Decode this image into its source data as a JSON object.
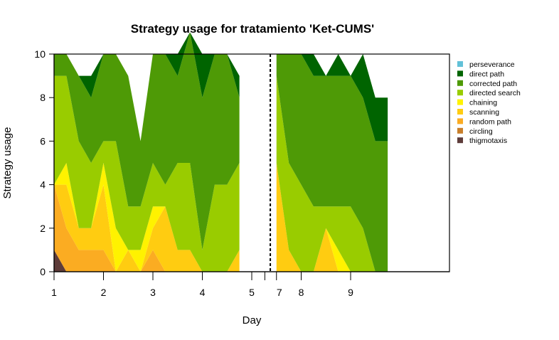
{
  "chart_data": {
    "type": "area",
    "title": "Strategy usage for tratamiento 'Ket-CUMS'",
    "xlabel": "Day",
    "ylabel": "Strategy usage",
    "xlim": [
      1,
      9
    ],
    "ylim": [
      0,
      10
    ],
    "x_ticks": [
      "1",
      "2",
      "3",
      "4",
      "5",
      "7",
      "8",
      "9"
    ],
    "y_ticks": [
      "0",
      "2",
      "4",
      "6",
      "8",
      "10"
    ],
    "legend_position": "right",
    "x_positions": [
      1.0,
      1.25,
      1.5,
      1.75,
      2.0,
      2.25,
      2.5,
      2.75,
      3.0,
      3.25,
      3.5,
      3.75,
      4.0,
      4.25,
      4.5,
      4.75,
      5.5,
      5.75,
      6.0,
      6.25,
      6.5,
      6.75,
      7.0,
      7.25,
      7.5,
      7.75
    ],
    "segments": [
      [
        0,
        15
      ],
      [
        16,
        25
      ]
    ],
    "break_line_x": 5.375,
    "series": [
      {
        "name": "thigmotaxis",
        "color": "#5e3c3a",
        "values": [
          1,
          0,
          0,
          0,
          0,
          0,
          0,
          0,
          0,
          0,
          0,
          0,
          0,
          0,
          0,
          0,
          0,
          0,
          0,
          0,
          0,
          0,
          0,
          0,
          0,
          0
        ]
      },
      {
        "name": "circling",
        "color": "#c87f2a",
        "values": [
          0,
          0,
          0,
          0,
          0,
          0,
          0,
          0,
          0,
          0,
          0,
          0,
          0,
          0,
          0,
          0,
          0,
          0,
          0,
          0,
          0,
          0,
          0,
          0,
          0,
          0
        ]
      },
      {
        "name": "random path",
        "color": "#fbac22",
        "values": [
          3,
          2,
          1,
          1,
          1,
          0,
          0,
          0,
          1,
          0,
          0,
          0,
          0,
          0,
          0,
          0,
          0,
          0,
          0,
          0,
          0,
          0,
          0,
          0,
          0,
          0
        ]
      },
      {
        "name": "scanning",
        "color": "#ffcc11",
        "values": [
          0,
          2,
          1,
          1,
          3,
          0,
          1,
          0,
          1,
          3,
          1,
          1,
          0,
          0,
          0,
          1,
          5,
          1,
          0,
          0,
          2,
          0,
          0,
          0,
          0,
          0
        ]
      },
      {
        "name": "chaining",
        "color": "#fff200",
        "values": [
          0,
          1,
          0,
          0,
          1,
          2,
          0,
          1,
          1,
          0,
          0,
          0,
          0,
          0,
          0,
          0,
          0,
          0,
          0,
          0,
          0,
          1,
          0,
          0,
          0,
          0
        ]
      },
      {
        "name": "directed search",
        "color": "#99cc00",
        "values": [
          5,
          4,
          4,
          3,
          1,
          4,
          2,
          2,
          2,
          1,
          4,
          4,
          1,
          4,
          4,
          4,
          4,
          4,
          4,
          3,
          1,
          2,
          3,
          2,
          0,
          0
        ]
      },
      {
        "name": "corrected path",
        "color": "#4e9a06",
        "values": [
          1,
          1,
          3,
          3,
          4,
          4,
          6,
          3,
          5,
          6,
          4,
          6,
          7,
          6,
          6,
          3,
          1,
          5,
          6,
          6,
          6,
          6,
          6,
          6,
          6,
          6
        ]
      },
      {
        "name": "direct path",
        "color": "#006400",
        "values": [
          0,
          0,
          0,
          1,
          0,
          0,
          0,
          0,
          0,
          0,
          1,
          0,
          2,
          0,
          0,
          1,
          0,
          0,
          0,
          1,
          0,
          1,
          0,
          2,
          2,
          2
        ]
      },
      {
        "name": "perseverance",
        "color": "#62c1d8",
        "values": [
          0,
          0,
          0,
          0,
          0,
          0,
          0,
          0,
          0,
          0,
          0,
          0,
          0,
          0,
          0,
          0,
          0,
          0,
          0,
          0,
          0,
          0,
          0,
          0,
          0,
          0
        ]
      }
    ]
  }
}
